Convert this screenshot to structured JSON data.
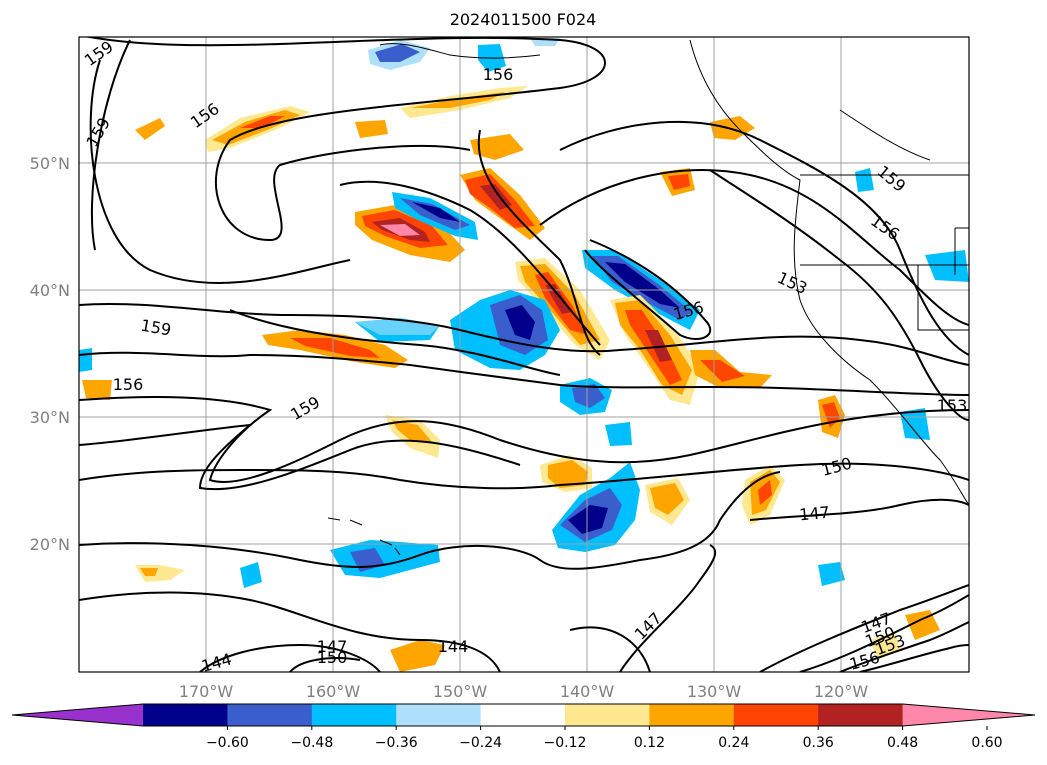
{
  "title": "2024011500 F024",
  "lat_labels": [
    "50°N",
    "40°N",
    "30°N",
    "20°N"
  ],
  "lon_labels": [
    "170°W",
    "160°W",
    "150°W",
    "140°W",
    "130°W",
    "120°W"
  ],
  "colorbar": {
    "colors": [
      "#9932cc",
      "#00008b",
      "#3a5fcd",
      "#00bfff",
      "#afe0fa",
      "#ffffff",
      "#ffe88f",
      "#ffa500",
      "#ff4500",
      "#b22222",
      "#ff88aa"
    ],
    "ticks": [
      "−0.60",
      "−0.48",
      "−0.36",
      "−0.24",
      "−0.12",
      "0.12",
      "0.24",
      "0.36",
      "0.48",
      "0.60"
    ]
  },
  "contour_labels": [
    "159",
    "156",
    "159",
    "156",
    "159",
    "156",
    "159",
    "156",
    "153",
    "156",
    "159",
    "153",
    "150",
    "147",
    "144",
    "147",
    "150",
    "144",
    "147",
    "147",
    "150",
    "153",
    "156"
  ]
}
